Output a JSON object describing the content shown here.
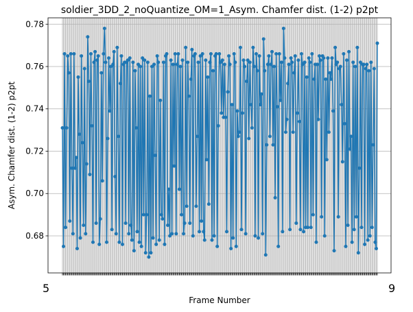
{
  "chart_data": {
    "type": "line",
    "title": "soldier_3DD_2_noQuantize_OM=1_Asym. Chamfer dist. (1-2) p2pt",
    "xlabel": "Frame Number",
    "ylabel": "Asym. Chamfer dist. (1-2) p2pt",
    "ylim": [
      0.6625,
      0.783
    ],
    "yticks": [
      0.68,
      0.7,
      0.72,
      0.74,
      0.76,
      0.78
    ],
    "ytick_labels": [
      "0.68",
      "0.70",
      "0.72",
      "0.74",
      "0.76",
      "0.78"
    ],
    "xtick_label_first": "5",
    "xtick_label_last": "9",
    "grid": true,
    "line_color": "#1f77b4",
    "series": [
      {
        "values": [
          0.731,
          0.675,
          0.766,
          0.684,
          0.731,
          0.765,
          0.757,
          0.687,
          0.766,
          0.712,
          0.681,
          0.766,
          0.712,
          0.717,
          0.674,
          0.755,
          0.728,
          0.679,
          0.765,
          0.724,
          0.685,
          0.759,
          0.681,
          0.714,
          0.774,
          0.753,
          0.709,
          0.766,
          0.732,
          0.677,
          0.762,
          0.767,
          0.686,
          0.763,
          0.765,
          0.676,
          0.688,
          0.757,
          0.706,
          0.766,
          0.778,
          0.762,
          0.677,
          0.726,
          0.764,
          0.739,
          0.76,
          0.683,
          0.761,
          0.767,
          0.708,
          0.681,
          0.769,
          0.727,
          0.677,
          0.752,
          0.765,
          0.676,
          0.761,
          0.762,
          0.686,
          0.762,
          0.763,
          0.681,
          0.764,
          0.685,
          0.678,
          0.762,
          0.673,
          0.758,
          0.731,
          0.682,
          0.761,
          0.677,
          0.76,
          0.675,
          0.764,
          0.69,
          0.763,
          0.672,
          0.69,
          0.762,
          0.67,
          0.746,
          0.672,
          0.76,
          0.679,
          0.761,
          0.718,
          0.676,
          0.765,
          0.762,
          0.678,
          0.744,
          0.69,
          0.688,
          0.762,
          0.676,
          0.765,
          0.766,
          0.685,
          0.702,
          0.68,
          0.763,
          0.681,
          0.761,
          0.713,
          0.766,
          0.681,
          0.761,
          0.766,
          0.702,
          0.76,
          0.69,
          0.763,
          0.681,
          0.686,
          0.769,
          0.694,
          0.762,
          0.746,
          0.686,
          0.754,
          0.768,
          0.68,
          0.765,
          0.766,
          0.694,
          0.727,
          0.762,
          0.682,
          0.765,
          0.687,
          0.766,
          0.682,
          0.678,
          0.763,
          0.716,
          0.755,
          0.695,
          0.762,
          0.766,
          0.678,
          0.758,
          0.68,
          0.765,
          0.766,
          0.675,
          0.732,
          0.766,
          0.762,
          0.738,
          0.763,
          0.736,
          0.761,
          0.736,
          0.682,
          0.748,
          0.765,
          0.761,
          0.674,
          0.742,
          0.679,
          0.766,
          0.762,
          0.675,
          0.739,
          0.727,
          0.729,
          0.769,
          0.683,
          0.738,
          0.763,
          0.76,
          0.681,
          0.753,
          0.763,
          0.726,
          0.762,
          0.742,
          0.731,
          0.769,
          0.76,
          0.68,
          0.766,
          0.758,
          0.679,
          0.765,
          0.742,
          0.747,
          0.681,
          0.773,
          0.758,
          0.671,
          0.723,
          0.761,
          0.765,
          0.727,
          0.761,
          0.767,
          0.723,
          0.76,
          0.698,
          0.766,
          0.741,
          0.675,
          0.766,
          0.744,
          0.762,
          0.682,
          0.778,
          0.764,
          0.729,
          0.735,
          0.752,
          0.761,
          0.683,
          0.764,
          0.762,
          0.729,
          0.757,
          0.765,
          0.686,
          0.738,
          0.763,
          0.734,
          0.683,
          0.766,
          0.761,
          0.682,
          0.762,
          0.684,
          0.755,
          0.684,
          0.764,
          0.762,
          0.684,
          0.766,
          0.69,
          0.754,
          0.761,
          0.677,
          0.761,
          0.735,
          0.765,
          0.763,
          0.689,
          0.765,
          0.764,
          0.68,
          0.754,
          0.716,
          0.764,
          0.729,
          0.757,
          0.754,
          0.764,
          0.739,
          0.673,
          0.769,
          0.761,
          0.762,
          0.689,
          0.759,
          0.76,
          0.742,
          0.715,
          0.766,
          0.733,
          0.675,
          0.763,
          0.685,
          0.767,
          0.721,
          0.727,
          0.677,
          0.762,
          0.683,
          0.76,
          0.689,
          0.769,
          0.672,
          0.712,
          0.762,
          0.684,
          0.761,
          0.761,
          0.676,
          0.759,
          0.761,
          0.678,
          0.758,
          0.68,
          0.762,
          0.684,
          0.723,
          0.759,
          0.677,
          0.674,
          0.771
        ]
      }
    ]
  }
}
